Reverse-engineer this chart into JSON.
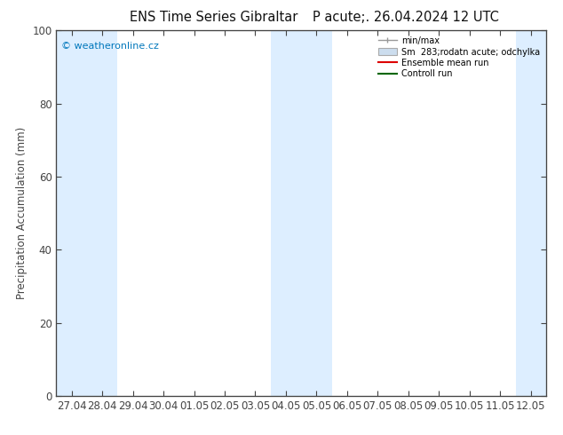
{
  "title_left": "ENS Time Series Gibraltar",
  "title_right": "P acute;. 26.04.2024 12 UTC",
  "ylabel": "Precipitation Accumulation (mm)",
  "watermark": "© weatheronline.cz",
  "watermark_color": "#0077bb",
  "ylim": [
    0,
    100
  ],
  "yticks": [
    0,
    20,
    40,
    60,
    80,
    100
  ],
  "xtick_labels": [
    "27.04",
    "28.04",
    "29.04",
    "30.04",
    "01.05",
    "02.05",
    "03.05",
    "04.05",
    "05.05",
    "06.05",
    "07.05",
    "08.05",
    "09.05",
    "10.05",
    "11.05",
    "12.05"
  ],
  "background_color": "#ffffff",
  "plot_bg_color": "#ffffff",
  "shade_color": "#ddeeff",
  "shade_positions": [
    0,
    1,
    7,
    8,
    15
  ],
  "legend_label_minmax": "min/max",
  "legend_label_sm": "Sm  283;rodatn acute; odchylka",
  "legend_label_ens": "Ensemble mean run",
  "legend_label_ctrl": "Controll run",
  "color_minmax": "#999999",
  "color_sm": "#ccddee",
  "color_ens": "#dd0000",
  "color_ctrl": "#006600",
  "axis_color": "#444444",
  "tick_color": "#444444",
  "font_size": 8.5,
  "title_font_size": 10.5
}
